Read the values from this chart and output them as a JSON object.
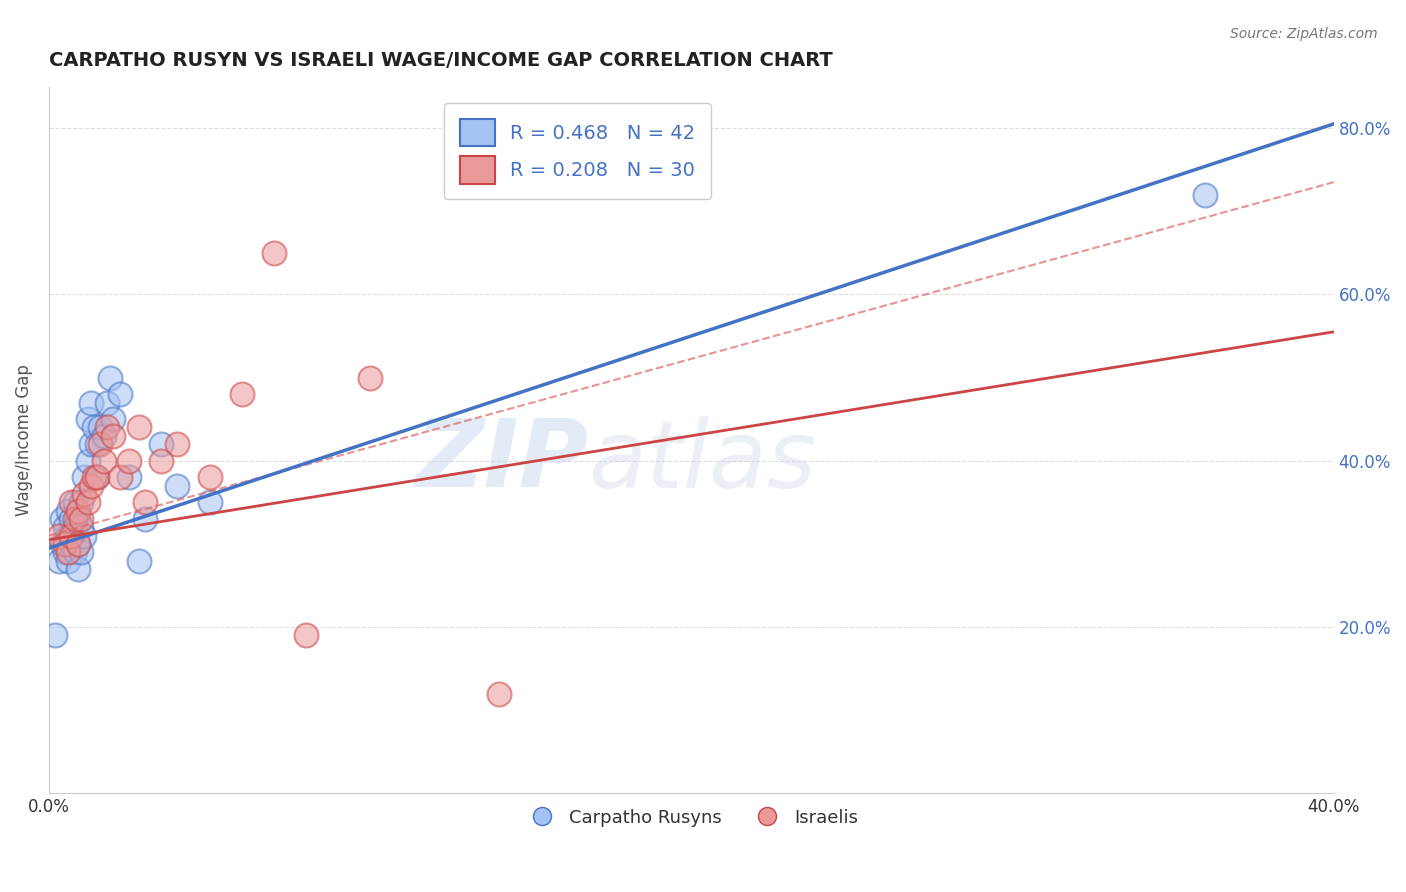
{
  "title": "CARPATHO RUSYN VS ISRAELI WAGE/INCOME GAP CORRELATION CHART",
  "source": "Source: ZipAtlas.com",
  "ylabel": "Wage/Income Gap",
  "blue_R": 0.468,
  "blue_N": 42,
  "pink_R": 0.208,
  "pink_N": 30,
  "blue_color": "#a4c2f4",
  "pink_color": "#ea9999",
  "blue_line_color": "#4472c4",
  "pink_line_color": "#cc4444",
  "dashed_line_color": "#e06666",
  "legend_label_blue": "Carpatho Rusyns",
  "legend_label_pink": "Israelis",
  "blue_scatter_x": [
    0.002,
    0.003,
    0.004,
    0.004,
    0.005,
    0.005,
    0.006,
    0.006,
    0.006,
    0.007,
    0.007,
    0.008,
    0.008,
    0.008,
    0.009,
    0.009,
    0.009,
    0.01,
    0.01,
    0.01,
    0.011,
    0.011,
    0.012,
    0.012,
    0.013,
    0.013,
    0.014,
    0.015,
    0.015,
    0.016,
    0.017,
    0.018,
    0.019,
    0.02,
    0.022,
    0.025,
    0.028,
    0.03,
    0.04,
    0.05,
    0.035,
    0.36
  ],
  "blue_scatter_y": [
    0.19,
    0.28,
    0.3,
    0.33,
    0.29,
    0.32,
    0.28,
    0.31,
    0.34,
    0.3,
    0.33,
    0.29,
    0.32,
    0.35,
    0.27,
    0.3,
    0.33,
    0.29,
    0.32,
    0.35,
    0.31,
    0.38,
    0.4,
    0.45,
    0.42,
    0.47,
    0.44,
    0.38,
    0.42,
    0.44,
    0.43,
    0.47,
    0.5,
    0.45,
    0.48,
    0.38,
    0.28,
    0.33,
    0.37,
    0.35,
    0.42,
    0.72
  ],
  "pink_scatter_x": [
    0.003,
    0.005,
    0.006,
    0.007,
    0.007,
    0.008,
    0.009,
    0.009,
    0.01,
    0.011,
    0.012,
    0.013,
    0.014,
    0.015,
    0.016,
    0.017,
    0.018,
    0.02,
    0.022,
    0.025,
    0.028,
    0.03,
    0.035,
    0.04,
    0.05,
    0.06,
    0.07,
    0.08,
    0.1,
    0.14
  ],
  "pink_scatter_y": [
    0.31,
    0.3,
    0.29,
    0.31,
    0.35,
    0.33,
    0.34,
    0.3,
    0.33,
    0.36,
    0.35,
    0.37,
    0.38,
    0.38,
    0.42,
    0.4,
    0.44,
    0.43,
    0.38,
    0.4,
    0.44,
    0.35,
    0.4,
    0.42,
    0.38,
    0.48,
    0.65,
    0.19,
    0.5,
    0.12
  ],
  "watermark_zip": "ZIP",
  "watermark_atlas": "atlas",
  "xlim": [
    0.0,
    0.4
  ],
  "ylim": [
    0.0,
    0.85
  ],
  "blue_line_x0": 0.0,
  "blue_line_y0": 0.295,
  "blue_line_x1": 0.4,
  "blue_line_y1": 0.805,
  "pink_line_x0": 0.0,
  "pink_line_y0": 0.305,
  "pink_line_x1": 0.4,
  "pink_line_y1": 0.555,
  "dashed_line_x0": 0.0,
  "dashed_line_y0": 0.31,
  "dashed_line_x1": 0.4,
  "dashed_line_y1": 0.735
}
